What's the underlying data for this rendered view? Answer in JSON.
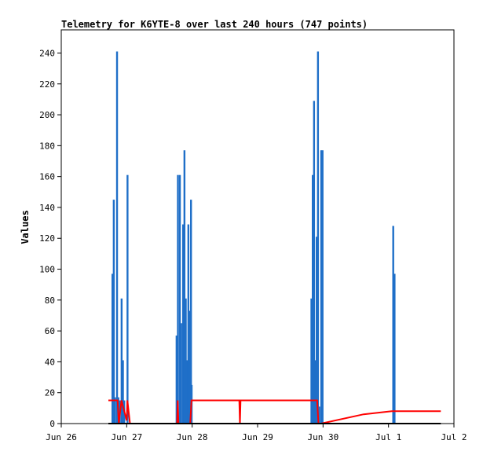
{
  "chart_data": {
    "type": "bar",
    "title": "Telemetry for K6YTE-8 over last 240 hours (747 points)",
    "ylabel": "Values",
    "xlabel": "",
    "ylim": [
      0,
      255
    ],
    "xlim": [
      0,
      6
    ],
    "y_ticks": [
      0,
      20,
      40,
      60,
      80,
      100,
      120,
      140,
      160,
      180,
      200,
      220,
      240
    ],
    "x_ticks": [
      {
        "pos": 0,
        "label": "Jun 26"
      },
      {
        "pos": 1,
        "label": "Jun 27"
      },
      {
        "pos": 2,
        "label": "Jun 28"
      },
      {
        "pos": 3,
        "label": "Jun 29"
      },
      {
        "pos": 4,
        "label": "Jun 30"
      },
      {
        "pos": 5,
        "label": "Jul 1"
      },
      {
        "pos": 6,
        "label": "Jul 2"
      }
    ],
    "grid": false,
    "series": [
      {
        "kind": "bar",
        "color": "#1f6fc8",
        "points": [
          [
            0.78,
            97
          ],
          [
            0.8,
            145
          ],
          [
            0.82,
            17
          ],
          [
            0.85,
            241
          ],
          [
            0.87,
            17
          ],
          [
            0.89,
            15
          ],
          [
            0.92,
            81
          ],
          [
            0.94,
            41
          ],
          [
            0.96,
            15
          ],
          [
            1.01,
            161
          ],
          [
            1.76,
            57
          ],
          [
            1.78,
            161
          ],
          [
            1.81,
            161
          ],
          [
            1.83,
            65
          ],
          [
            1.86,
            129
          ],
          [
            1.88,
            177
          ],
          [
            1.9,
            81
          ],
          [
            1.92,
            41
          ],
          [
            1.94,
            129
          ],
          [
            1.96,
            73
          ],
          [
            1.98,
            145
          ],
          [
            1.99,
            25
          ],
          [
            3.82,
            81
          ],
          [
            3.84,
            161
          ],
          [
            3.86,
            209
          ],
          [
            3.88,
            41
          ],
          [
            3.9,
            121
          ],
          [
            3.92,
            241
          ],
          [
            3.94,
            11
          ],
          [
            3.97,
            177
          ],
          [
            3.99,
            177
          ],
          [
            5.07,
            128
          ],
          [
            5.09,
            97
          ]
        ]
      },
      {
        "kind": "line",
        "color": "#ff0000",
        "points": [
          [
            0.72,
            15
          ],
          [
            0.86,
            15
          ],
          [
            0.88,
            0
          ],
          [
            0.92,
            15
          ],
          [
            1.0,
            2
          ],
          [
            1.01,
            15
          ],
          [
            1.05,
            0
          ],
          [
            1.77,
            0
          ],
          [
            1.78,
            15
          ],
          [
            1.79,
            0
          ],
          [
            1.97,
            0
          ],
          [
            1.99,
            15
          ],
          [
            2.72,
            15
          ],
          [
            2.73,
            0
          ],
          [
            2.74,
            15
          ],
          [
            3.91,
            15
          ],
          [
            3.93,
            0
          ],
          [
            3.97,
            0
          ],
          [
            4.62,
            6
          ],
          [
            5.05,
            8
          ],
          [
            5.8,
            8
          ]
        ]
      },
      {
        "kind": "line",
        "color": "#000000",
        "points": [
          [
            0.72,
            0
          ],
          [
            5.8,
            0
          ]
        ]
      }
    ]
  }
}
